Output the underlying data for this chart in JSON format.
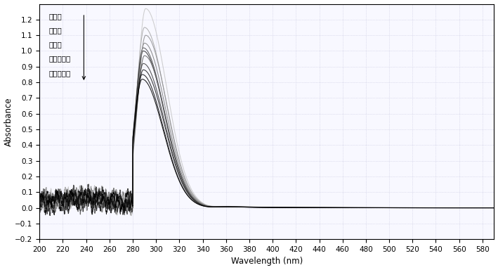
{
  "xlabel": "Wavelength (nm)",
  "ylabel": "Absorbance",
  "xlim": [
    200,
    590
  ],
  "ylim": [
    -0.2,
    1.3
  ],
  "yticks": [
    -0.2,
    -0.1,
    0.0,
    0.1,
    0.2,
    0.3,
    0.4,
    0.5,
    0.6,
    0.7,
    0.8,
    0.9,
    1.0,
    1.1,
    1.2
  ],
  "xticks": [
    200,
    220,
    240,
    260,
    280,
    300,
    320,
    340,
    360,
    380,
    400,
    420,
    440,
    460,
    480,
    500,
    520,
    540,
    560,
    580
  ],
  "annotation_lines": [
    "香橙素",
    "柚皮素",
    "橙皮素",
    "二氢杨梅素",
    "二氢槲皮素"
  ],
  "background_color": "#f8f8ff",
  "grid_color": "#c8c8e0",
  "curves": [
    {
      "color": "#c8c8c8",
      "peak_wl": 291,
      "peak_abs": 1.27,
      "seed": 1
    },
    {
      "color": "#aaaaaa",
      "peak_wl": 290,
      "peak_abs": 1.15,
      "seed": 2
    },
    {
      "color": "#808080",
      "peak_wl": 290,
      "peak_abs": 1.05,
      "seed": 3
    },
    {
      "color": "#505050",
      "peak_wl": 289,
      "peak_abs": 1.02,
      "seed": 4
    },
    {
      "color": "#303030",
      "peak_wl": 289,
      "peak_abs": 1.0,
      "seed": 5
    },
    {
      "color": "#909090",
      "peak_wl": 291,
      "peak_abs": 1.1,
      "seed": 6
    },
    {
      "color": "#686868",
      "peak_wl": 290,
      "peak_abs": 0.97,
      "seed": 7
    },
    {
      "color": "#404040",
      "peak_wl": 289,
      "peak_abs": 0.92,
      "seed": 8
    },
    {
      "color": "#202020",
      "peak_wl": 289,
      "peak_abs": 0.88,
      "seed": 9
    },
    {
      "color": "#101010",
      "peak_wl": 288,
      "peak_abs": 0.85,
      "seed": 10
    },
    {
      "color": "#000000",
      "peak_wl": 288,
      "peak_abs": 0.82,
      "seed": 11
    }
  ]
}
